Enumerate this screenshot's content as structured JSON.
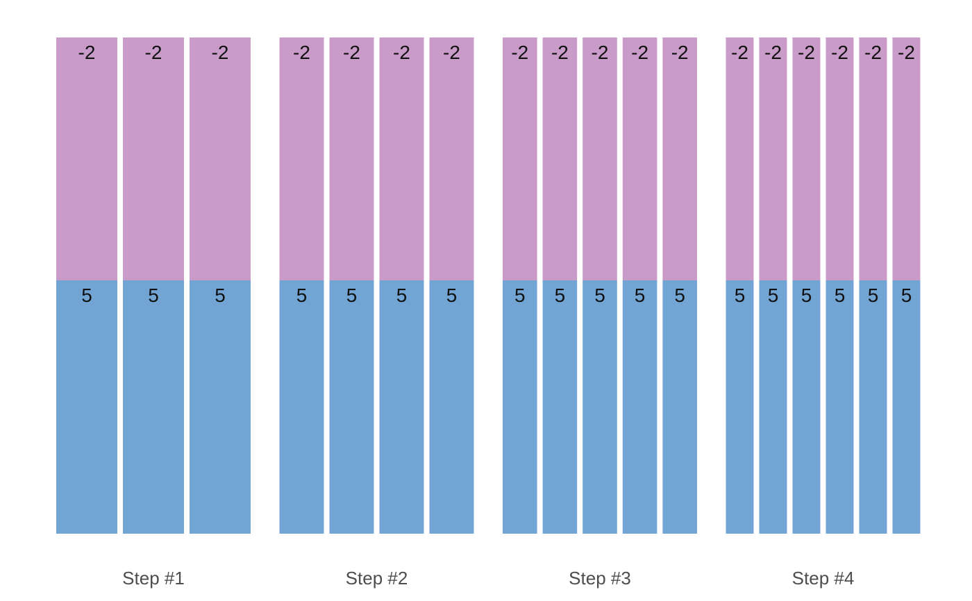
{
  "chart_data": {
    "type": "bar",
    "title": "",
    "xlabel": "",
    "ylabel": "",
    "colors": {
      "top": "#c99bc8",
      "bottom": "#72a4d4"
    },
    "groups": [
      {
        "label": "Step #1",
        "bars": [
          {
            "top": "-2",
            "bottom": "5"
          },
          {
            "top": "-2",
            "bottom": "5"
          },
          {
            "top": "-2",
            "bottom": "5"
          }
        ]
      },
      {
        "label": "Step #2",
        "bars": [
          {
            "top": "-2",
            "bottom": "5"
          },
          {
            "top": "-2",
            "bottom": "5"
          },
          {
            "top": "-2",
            "bottom": "5"
          },
          {
            "top": "-2",
            "bottom": "5"
          }
        ]
      },
      {
        "label": "Step #3",
        "bars": [
          {
            "top": "-2",
            "bottom": "5"
          },
          {
            "top": "-2",
            "bottom": "5"
          },
          {
            "top": "-2",
            "bottom": "5"
          },
          {
            "top": "-2",
            "bottom": "5"
          },
          {
            "top": "-2",
            "bottom": "5"
          }
        ]
      },
      {
        "label": "Step #4",
        "bars": [
          {
            "top": "-2",
            "bottom": "5"
          },
          {
            "top": "-2",
            "bottom": "5"
          },
          {
            "top": "-2",
            "bottom": "5"
          },
          {
            "top": "-2",
            "bottom": "5"
          },
          {
            "top": "-2",
            "bottom": "5"
          },
          {
            "top": "-2",
            "bottom": "5"
          }
        ]
      }
    ]
  }
}
